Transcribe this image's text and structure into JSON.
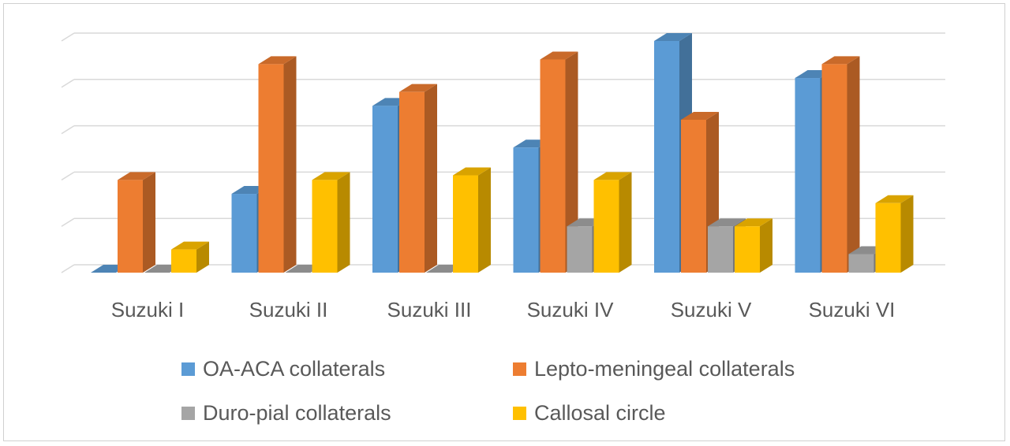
{
  "chart_data": {
    "type": "bar",
    "categories": [
      "Suzuki I",
      "Suzuki II",
      "Suzuki III",
      "Suzuki IV",
      "Suzuki V",
      "Suzuki VI"
    ],
    "series": [
      {
        "name": "OA-ACA collaterals",
        "color": "#5B9BD5",
        "values": [
          0,
          1.7,
          3.6,
          2.7,
          5.0,
          4.2
        ]
      },
      {
        "name": "Lepto-meningeal collaterals",
        "color": "#ED7D31",
        "values": [
          2.0,
          4.5,
          3.9,
          4.6,
          3.3,
          4.5
        ]
      },
      {
        "name": "Duro-pial collaterals",
        "color": "#A5A5A5",
        "values": [
          0,
          0,
          0,
          1.0,
          1.0,
          0.4
        ]
      },
      {
        "name": "Callosal circle",
        "color": "#FFC000",
        "values": [
          0.5,
          2.0,
          2.1,
          2.0,
          1.0,
          1.5
        ]
      }
    ],
    "title": "",
    "xlabel": "",
    "ylabel": "",
    "ylim": [
      0,
      5
    ],
    "grid": true,
    "legend_position": "bottom",
    "style": "3d-clustered-column"
  }
}
